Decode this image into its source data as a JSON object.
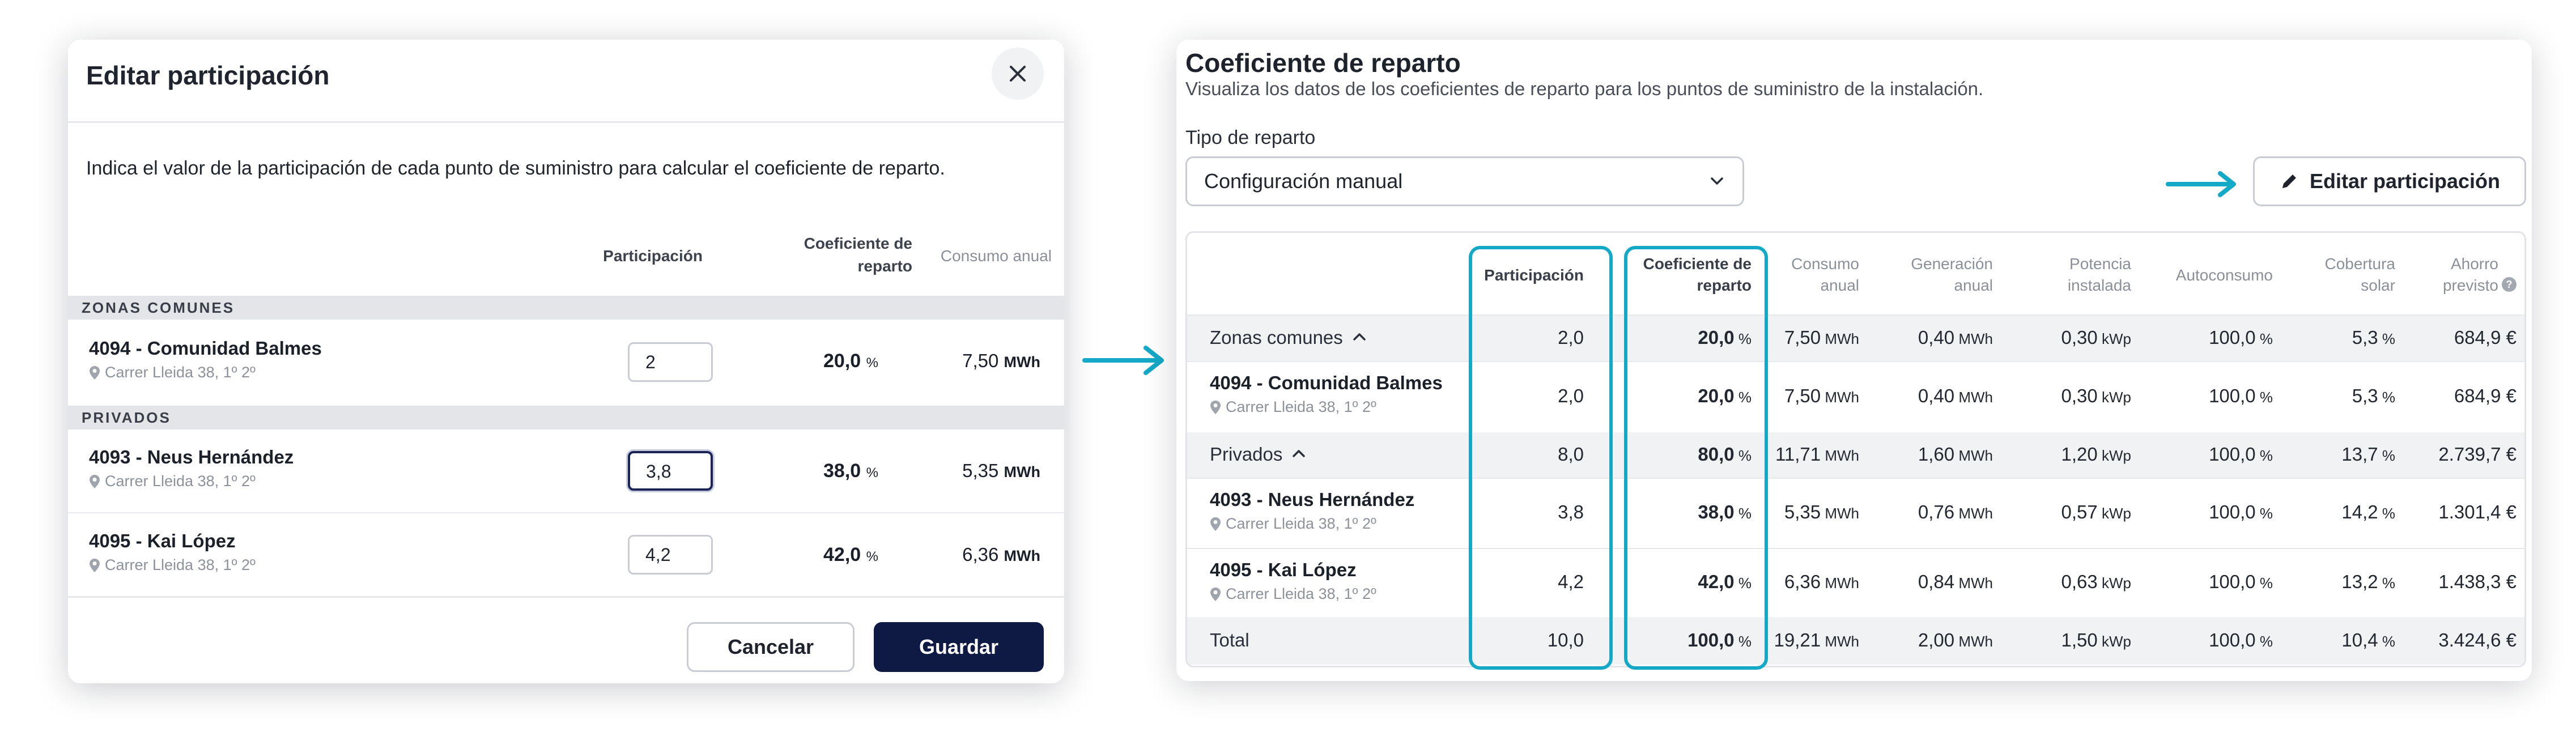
{
  "colors": {
    "accent": "#14a9c6",
    "primary": "#0f1a44"
  },
  "modal": {
    "title": "Editar participación",
    "close_icon": "close-icon",
    "intro": "Indica el valor de la participación de cada punto de suministro para calcular el coeficiente de reparto.",
    "headers": {
      "participacion": "Participación",
      "coef_line1": "Coeficiente de",
      "coef_line2": "reparto",
      "consumo": "Consumo anual"
    },
    "groups": {
      "zonas": "ZONAS COMUNES",
      "privados": "PRIVADOS"
    },
    "rows": [
      {
        "name": "4094 - Comunidad Balmes",
        "address": "Carrer Lleida 38, 1º 2º",
        "input": "2",
        "coef": "20,0",
        "coef_unit": "%",
        "consumo": "7,50",
        "consumo_unit": "MWh"
      },
      {
        "name": "4093 - Neus Hernández",
        "address": "Carrer Lleida 38, 1º 2º",
        "input": "3,8",
        "coef": "38,0",
        "coef_unit": "%",
        "consumo": "5,35",
        "consumo_unit": "MWh"
      },
      {
        "name": "4095 - Kai López",
        "address": "Carrer Lleida 38, 1º 2º",
        "input": "4,2",
        "coef": "42,0",
        "coef_unit": "%",
        "consumo": "6,36",
        "consumo_unit": "MWh"
      }
    ],
    "cancel_label": "Cancelar",
    "save_label": "Guardar"
  },
  "panel": {
    "title": "Coeficiente de reparto",
    "subtitle": "Visualiza los datos de los coeficientes de reparto para los puntos de suministro de la instalación.",
    "tipo_label": "Tipo de reparto",
    "tipo_value": "Configuración manual",
    "edit_button": "Editar participación",
    "headers": {
      "participacion": "Participación",
      "coef_1": "Coeficiente de",
      "coef_2": "reparto",
      "consumo_1": "Consumo",
      "consumo_2": "anual",
      "generacion_1": "Generación",
      "generacion_2": "anual",
      "potencia_1": "Potencia",
      "potencia_2": "instalada",
      "autoconsumo": "Autoconsumo",
      "cobertura_1": "Cobertura",
      "cobertura_2": "solar",
      "ahorro_1": "Ahorro",
      "ahorro_2": "previsto"
    },
    "rows": [
      {
        "name": "Zonas comunes",
        "group": true,
        "participacion": "2,0",
        "coef": "20,0",
        "consumo": "7,50",
        "generacion": "0,40",
        "potencia": "0,30",
        "autoconsumo": "100,0",
        "cobertura": "5,3",
        "ahorro": "684,9 €"
      },
      {
        "name": "4094 - Comunidad Balmes",
        "address": "Carrer Lleida 38, 1º 2º",
        "participacion": "2,0",
        "coef": "20,0",
        "consumo": "7,50",
        "generacion": "0,40",
        "potencia": "0,30",
        "autoconsumo": "100,0",
        "cobertura": "5,3",
        "ahorro": "684,9 €"
      },
      {
        "name": "Privados",
        "group": true,
        "participacion": "8,0",
        "coef": "80,0",
        "consumo": "11,71",
        "generacion": "1,60",
        "potencia": "1,20",
        "autoconsumo": "100,0",
        "cobertura": "13,7",
        "ahorro": "2.739,7 €"
      },
      {
        "name": "4093 - Neus Hernández",
        "address": "Carrer Lleida 38, 1º 2º",
        "participacion": "3,8",
        "coef": "38,0",
        "consumo": "5,35",
        "generacion": "0,76",
        "potencia": "0,57",
        "autoconsumo": "100,0",
        "cobertura": "14,2",
        "ahorro": "1.301,4 €"
      },
      {
        "name": "4095 - Kai López",
        "address": "Carrer Lleida 38, 1º 2º",
        "participacion": "4,2",
        "coef": "42,0",
        "consumo": "6,36",
        "generacion": "0,84",
        "potencia": "0,63",
        "autoconsumo": "100,0",
        "cobertura": "13,2",
        "ahorro": "1.438,3 €"
      },
      {
        "name": "Total",
        "total": true,
        "participacion": "10,0",
        "coef": "100,0",
        "consumo": "19,21",
        "generacion": "2,00",
        "potencia": "1,50",
        "autoconsumo": "100,0",
        "cobertura": "10,4",
        "ahorro": "3.424,6 €"
      }
    ],
    "units": {
      "pct": "%",
      "mwh": "MWh",
      "kwp": "kWp"
    }
  }
}
